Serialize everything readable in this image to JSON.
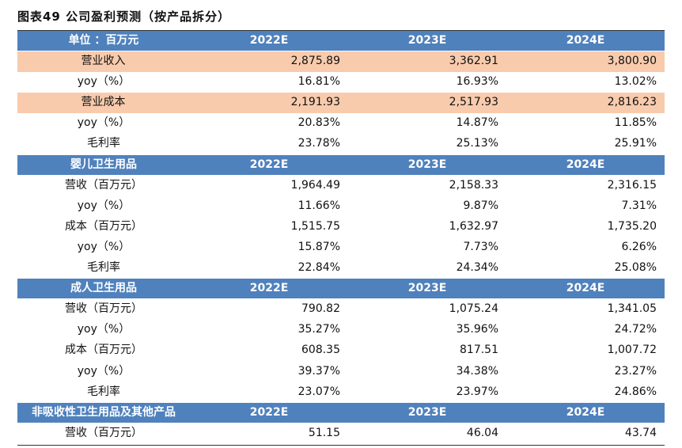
{
  "title": "图表49  公司盈利预测（按产品拆分）",
  "accent_color": "#4f81bd",
  "highlight_color": "#f8cbad",
  "table": {
    "rows": [
      {
        "type": "head",
        "label": "单位 ：百万元",
        "cells": [
          "2022E",
          "2023E",
          "2024E"
        ]
      },
      {
        "type": "hl",
        "label": "营业收入",
        "cells": [
          "2,875.89",
          "3,362.91",
          "3,800.90"
        ]
      },
      {
        "type": "data",
        "label": "yoy（%）",
        "cells": [
          "16.81%",
          "16.93%",
          "13.02%"
        ]
      },
      {
        "type": "hl",
        "label": "营业成本",
        "cells": [
          "2,191.93",
          "2,517.93",
          "2,816.23"
        ]
      },
      {
        "type": "data",
        "label": "yoy（%）",
        "cells": [
          "20.83%",
          "14.87%",
          "11.85%"
        ]
      },
      {
        "type": "data",
        "label": "毛利率",
        "cells": [
          "23.78%",
          "25.13%",
          "25.91%"
        ]
      },
      {
        "type": "head",
        "label": "婴儿卫生用品",
        "cells": [
          "2022E",
          "2023E",
          "2024E"
        ]
      },
      {
        "type": "data",
        "label": "营收（百万元）",
        "cells": [
          "1,964.49",
          "2,158.33",
          "2,316.15"
        ]
      },
      {
        "type": "data",
        "label": "yoy（%）",
        "cells": [
          "11.66%",
          "9.87%",
          "7.31%"
        ]
      },
      {
        "type": "data",
        "label": "成本（百万元）",
        "cells": [
          "1,515.75",
          "1,632.97",
          "1,735.20"
        ]
      },
      {
        "type": "data",
        "label": "yoy（%）",
        "cells": [
          "15.87%",
          "7.73%",
          "6.26%"
        ]
      },
      {
        "type": "data",
        "label": "毛利率",
        "cells": [
          "22.84%",
          "24.34%",
          "25.08%"
        ]
      },
      {
        "type": "head",
        "label": "成人卫生用品",
        "cells": [
          "2022E",
          "2023E",
          "2024E"
        ]
      },
      {
        "type": "data",
        "label": "营收（百万元）",
        "cells": [
          "790.82",
          "1,075.24",
          "1,341.05"
        ]
      },
      {
        "type": "data",
        "label": "yoy（%）",
        "cells": [
          "35.27%",
          "35.96%",
          "24.72%"
        ]
      },
      {
        "type": "data",
        "label": "成本（百万元）",
        "cells": [
          "608.35",
          "817.51",
          "1,007.72"
        ]
      },
      {
        "type": "data",
        "label": "yoy（%）",
        "cells": [
          "39.37%",
          "34.38%",
          "23.27%"
        ]
      },
      {
        "type": "data",
        "label": "毛利率",
        "cells": [
          "23.07%",
          "23.97%",
          "24.86%"
        ]
      },
      {
        "type": "head",
        "label": "非吸收性卫生用品及其他产品",
        "cells": [
          "2022E",
          "2023E",
          "2024E"
        ]
      },
      {
        "type": "data",
        "label": "营收（百万元）",
        "cells": [
          "51.15",
          "46.04",
          "43.74"
        ]
      }
    ]
  }
}
